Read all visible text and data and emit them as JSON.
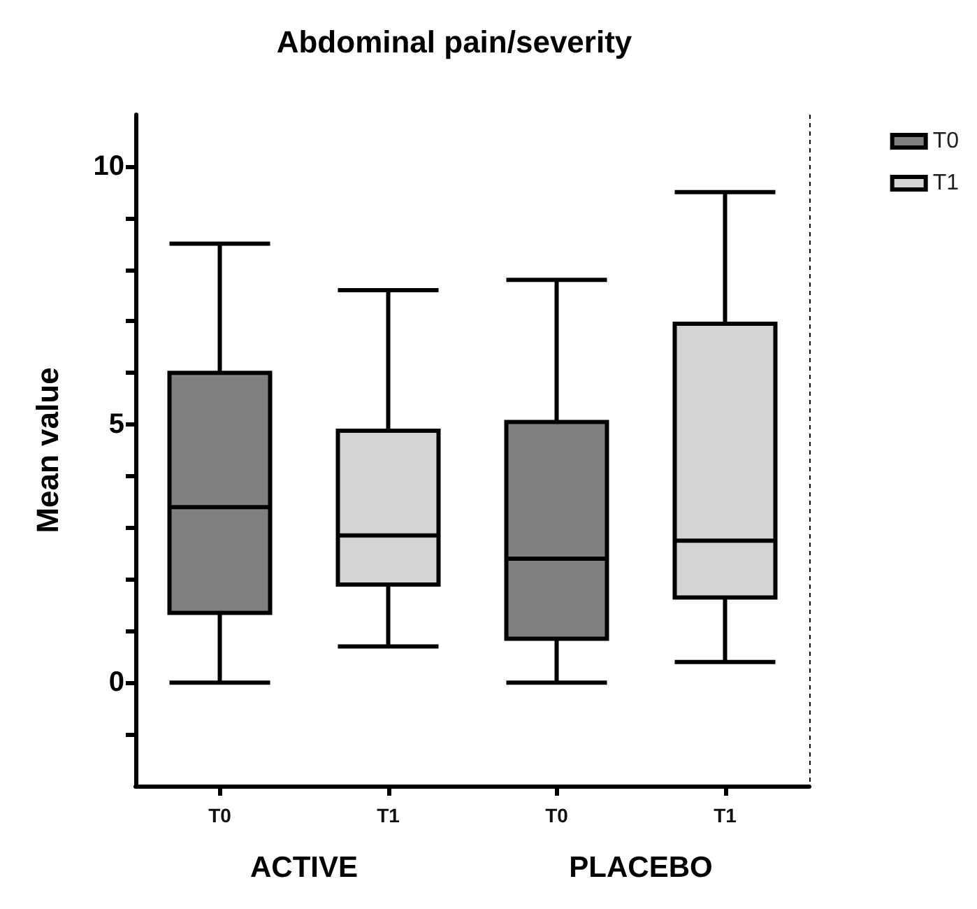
{
  "chart_data": {
    "type": "box",
    "title": "Abdominal pain/severity",
    "ylabel": "Mean value",
    "categories": [
      "ACTIVE",
      "PLACEBO"
    ],
    "series": [
      {
        "name": "T0",
        "color": "#808080",
        "boxes": [
          {
            "low": 0,
            "q1": 1.35,
            "median": 3.4,
            "q3": 6.0,
            "high": 8.5
          },
          {
            "low": 0,
            "q1": 0.85,
            "median": 2.4,
            "q3": 5.05,
            "high": 7.8
          }
        ]
      },
      {
        "name": "T1",
        "color": "#d4d4d4",
        "boxes": [
          {
            "low": 0.7,
            "q1": 1.9,
            "median": 2.85,
            "q3": 4.88,
            "high": 7.6
          },
          {
            "low": 0.4,
            "q1": 1.65,
            "median": 2.75,
            "q3": 6.95,
            "high": 9.5
          }
        ]
      }
    ],
    "ylim": [
      -2,
      11
    ],
    "yticks": [
      {
        "value": -1,
        "label": null
      },
      0,
      {
        "value": 1,
        "label": null
      },
      {
        "value": 2,
        "label": null
      },
      {
        "value": 3,
        "label": null
      },
      {
        "value": 4,
        "label": null
      },
      5,
      {
        "value": 6,
        "label": null
      },
      {
        "value": 7,
        "label": null
      },
      {
        "value": 8,
        "label": null
      },
      {
        "value": 9,
        "label": null
      },
      10
    ],
    "grid": false,
    "legend": "top right"
  }
}
